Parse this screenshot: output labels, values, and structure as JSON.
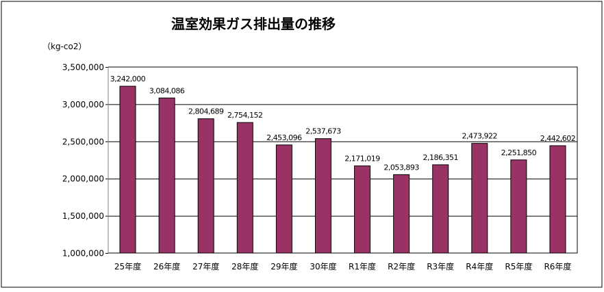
{
  "chart_data": {
    "type": "bar",
    "title": "温室効果ガス排出量の推移",
    "ylabel": "（kg-co2）",
    "xlabel": "",
    "categories": [
      "25年度",
      "26年度",
      "27年度",
      "28年度",
      "29年度",
      "30年度",
      "R1年度",
      "R2年度",
      "R3年度",
      "R4年度",
      "R5年度",
      "R6年度"
    ],
    "values": [
      3242000,
      3084086,
      2804689,
      2754152,
      2453096,
      2537673,
      2171019,
      2053893,
      2186351,
      2473922,
      2251850,
      2442602
    ],
    "data_labels": [
      "3,242,000",
      "3,084,086",
      "2,804,689",
      "2,754,152",
      "2,453,096",
      "2,537,673",
      "2,171,019",
      "2,053,893",
      "2,186,351",
      "2,473,922",
      "2,251,850",
      "2,442,602"
    ],
    "ylim": [
      1000000,
      3500000
    ],
    "yticks": [
      1000000,
      1500000,
      2000000,
      2500000,
      3000000,
      3500000
    ],
    "ytick_labels": [
      "1,000,000",
      "1,500,000",
      "2,000,000",
      "2,500,000",
      "3,000,000",
      "3,500,000"
    ],
    "grid": true,
    "legend": "none",
    "bar_color": "#993366"
  }
}
